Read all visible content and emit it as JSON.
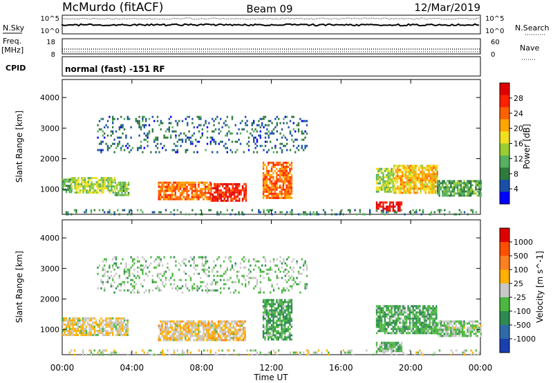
{
  "header": {
    "station": "McMurdo (fitACF)",
    "beam": "Beam 09",
    "date": "12/Mar/2019"
  },
  "top_panels": {
    "left_labels": {
      "nsky": "N.Sky",
      "freq": "Freq.",
      "freq_unit": "[MHz]",
      "cpid": "CPID"
    },
    "right_labels": {
      "nsearch": "N.Search",
      "nave": "Nave"
    },
    "noise_ticks": {
      "top": "10^5",
      "bottom": "10^0"
    },
    "freq_ticks": {
      "top": "18",
      "bottom": "8"
    },
    "nave_ticks": {
      "top": "60",
      "bottom": "0"
    },
    "cpid_text": "normal (fast) -151 RF"
  },
  "axes": {
    "ylabel": "Slant Range [km]",
    "xlabel": "Time UT",
    "xticks": [
      "00:00",
      "04:00",
      "08:00",
      "12:00",
      "16:00",
      "20:00",
      "00:00"
    ],
    "yticks": [
      "1000",
      "2000",
      "3000",
      "4000"
    ]
  },
  "chart_data": [
    {
      "type": "heatmap",
      "panel": "power",
      "x_range_hours": [
        0,
        24
      ],
      "y_range_km": [
        180,
        4590
      ],
      "colorbar": {
        "label": "Power [dB]",
        "ticks": [
          "4",
          "8",
          "12",
          "16",
          "20",
          "24",
          "28"
        ],
        "range": [
          0,
          30
        ],
        "colors": [
          "#0000ff",
          "#1a4fa8",
          "#2e7a3c",
          "#56b060",
          "#9acd32",
          "#f0e020",
          "#ffa500",
          "#ff6000",
          "#ff2000",
          "#e00000"
        ]
      },
      "regions": [
        {
          "t": [
            0.0,
            0.5
          ],
          "r": [
            900,
            1350
          ],
          "level": 10
        },
        {
          "t": [
            0.5,
            3.0
          ],
          "r": [
            900,
            1400
          ],
          "level": 14
        },
        {
          "t": [
            3.0,
            3.8
          ],
          "r": [
            800,
            1250
          ],
          "level": 12
        },
        {
          "t": [
            5.5,
            8.5
          ],
          "r": [
            650,
            1250
          ],
          "level": 22
        },
        {
          "t": [
            8.5,
            10.5
          ],
          "r": [
            600,
            1200
          ],
          "level": 26
        },
        {
          "t": [
            11.5,
            13.2
          ],
          "r": [
            700,
            1900
          ],
          "level": 22
        },
        {
          "t": [
            18.0,
            19.0
          ],
          "r": [
            900,
            1700
          ],
          "level": 14
        },
        {
          "t": [
            19.0,
            21.5
          ],
          "r": [
            900,
            1800
          ],
          "level": 18
        },
        {
          "t": [
            21.5,
            24.0
          ],
          "r": [
            800,
            1300
          ],
          "level": 10
        },
        {
          "t": [
            18.0,
            19.5
          ],
          "r": [
            280,
            600
          ],
          "level": 28
        },
        {
          "t": [
            2.0,
            14.0
          ],
          "r": [
            2200,
            3400
          ],
          "level": 6,
          "sparse": true
        },
        {
          "t": [
            0.0,
            24.0
          ],
          "r": [
            180,
            350
          ],
          "level": 8,
          "sparse": true
        }
      ]
    },
    {
      "type": "heatmap",
      "panel": "velocity",
      "x_range_hours": [
        0,
        24
      ],
      "y_range_km": [
        180,
        4590
      ],
      "colorbar": {
        "label": "Velocity [m s^-1]",
        "ticks": [
          "1000",
          "500",
          "100",
          "25",
          "-25",
          "-100",
          "-500",
          "-1000"
        ],
        "range": [
          -1000,
          1000
        ],
        "colors": [
          "#1a3fb0",
          "#2e6aa8",
          "#2e8a50",
          "#4cb840",
          "#c8c8c8",
          "#ffb000",
          "#ff8020",
          "#ff5000",
          "#e00000"
        ]
      },
      "regions": [
        {
          "t": [
            0.0,
            3.8
          ],
          "r": [
            850,
            1400
          ],
          "level": 80
        },
        {
          "t": [
            5.5,
            10.5
          ],
          "r": [
            650,
            1300
          ],
          "level": 120
        },
        {
          "t": [
            11.5,
            13.2
          ],
          "r": [
            700,
            2000
          ],
          "level": -300
        },
        {
          "t": [
            18.0,
            21.5
          ],
          "r": [
            900,
            1800
          ],
          "level": -300
        },
        {
          "t": [
            21.5,
            24.0
          ],
          "r": [
            800,
            1300
          ],
          "level": -120
        },
        {
          "t": [
            18.0,
            19.5
          ],
          "r": [
            280,
            600
          ],
          "level": -200
        },
        {
          "t": [
            2.0,
            14.0
          ],
          "r": [
            2200,
            3400
          ],
          "level": -150,
          "sparse": true
        },
        {
          "t": [
            0.0,
            24.0
          ],
          "r": [
            180,
            350
          ],
          "level": 0,
          "sparse": true
        }
      ]
    }
  ]
}
